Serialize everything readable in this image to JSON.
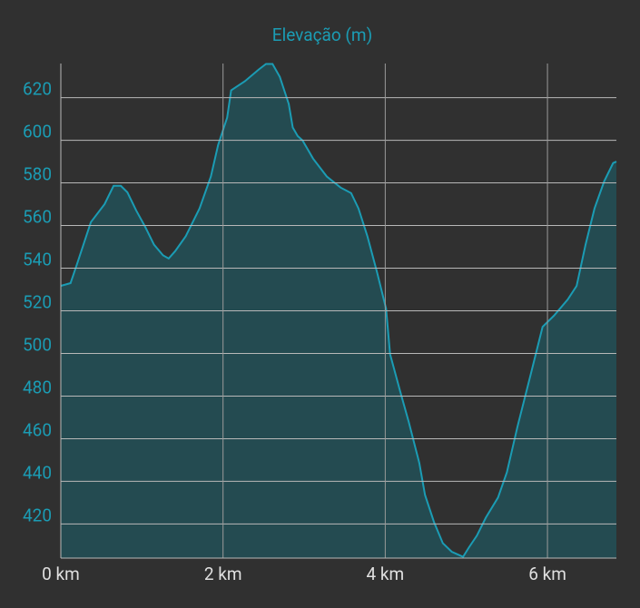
{
  "chart_data": {
    "type": "area",
    "title": "Elevação (m)",
    "x": [
      0,
      0.12,
      0.2,
      0.37,
      0.54,
      0.65,
      0.74,
      0.82,
      0.93,
      1.04,
      1.15,
      1.26,
      1.33,
      1.41,
      1.54,
      1.71,
      1.85,
      1.94,
      2.05,
      2.1,
      2.27,
      2.44,
      2.53,
      2.61,
      2.7,
      2.81,
      2.86,
      2.92,
      2.98,
      3.11,
      3.28,
      3.45,
      3.58,
      3.67,
      3.78,
      3.9,
      4.01,
      4.06,
      4.18,
      4.29,
      4.42,
      4.49,
      4.6,
      4.71,
      4.82,
      4.96,
      5.03,
      5.13,
      5.24,
      5.39,
      5.5,
      5.63,
      5.8,
      5.94,
      6.08,
      6.25,
      6.36,
      6.47,
      6.58,
      6.7,
      6.81,
      6.85
    ],
    "series": [
      {
        "name": "Elevação",
        "color": "#1b9cb4",
        "fill": "#244b51",
        "values": [
          531.7,
          533,
          542,
          561.6,
          570,
          578.6,
          578.6,
          575.6,
          567,
          559.4,
          551,
          546,
          544.5,
          548,
          555,
          568,
          583,
          597.8,
          610.6,
          623.4,
          627.7,
          633.2,
          635.8,
          635.8,
          629.8,
          617,
          606,
          602,
          600,
          591.4,
          583,
          577.8,
          575.2,
          568,
          555,
          538,
          521,
          499.7,
          482.7,
          467.8,
          448.6,
          433.6,
          421,
          411,
          407,
          404.6,
          408.9,
          414.5,
          423,
          432.4,
          444.3,
          465.6,
          491.2,
          512.5,
          517.7,
          525.3,
          531.7,
          551,
          568,
          580.8,
          589.3,
          590
        ]
      }
    ],
    "xlim": [
      0,
      6.85
    ],
    "xticks": [
      {
        "value": 0,
        "label": "0 km"
      },
      {
        "value": 2,
        "label": "2 km"
      },
      {
        "value": 4,
        "label": "4 km"
      },
      {
        "value": 6,
        "label": "6 km"
      }
    ],
    "ylim": [
      404,
      636
    ],
    "yticks": [
      420,
      440,
      460,
      480,
      500,
      520,
      540,
      560,
      580,
      600,
      620
    ],
    "grid": true
  }
}
